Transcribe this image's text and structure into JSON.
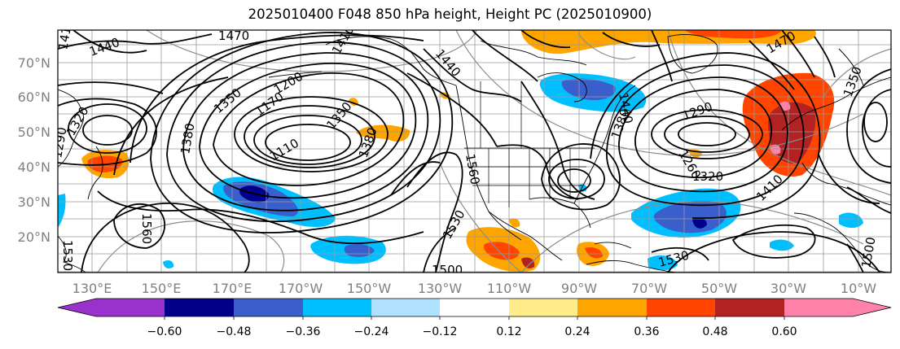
{
  "title": "2025010400 F048 850 hPa height, Height PC (2025010900)",
  "map": {
    "lat_labels": [
      "70°N",
      "60°N",
      "50°N",
      "40°N",
      "30°N",
      "20°N"
    ],
    "lon_labels": [
      "130°E",
      "150°E",
      "170°E",
      "170°W",
      "150°W",
      "130°W",
      "110°W",
      "90°W",
      "70°W",
      "50°W",
      "30°W",
      "10°W"
    ],
    "contour_labels": [
      "1470",
      "1440",
      "1410",
      "1380",
      "1350",
      "1320",
      "1290",
      "1530",
      "1560",
      "1500",
      "1170",
      "1200",
      "1110",
      "1350",
      "1410",
      "1380",
      "1440",
      "1470",
      "1320",
      "1290",
      "1260",
      "1380",
      "1440",
      "1530",
      "1560",
      "1530",
      "1500",
      "1410",
      "1350"
    ]
  },
  "colorbar": {
    "ticks": [
      "−0.60",
      "−0.48",
      "−0.36",
      "−0.24",
      "−0.12",
      "0.12",
      "0.24",
      "0.36",
      "0.48",
      "0.60"
    ],
    "colors": [
      "#9932cc",
      "#00008b",
      "#3a5fcd",
      "#00bfff",
      "#b0e2ff",
      "#ffffff",
      "#ffec8b",
      "#ffa500",
      "#ff4500",
      "#b22222",
      "#ff82ab"
    ]
  },
  "legend_colors": {
    "neg_strong": "#00008b",
    "neg_mid": "#3a5fcd",
    "neg_light": "#00bfff",
    "neg_faint": "#b0e2ff",
    "pos_faint": "#ffec8b",
    "pos_light": "#ffa500",
    "pos_mid": "#ff4500",
    "pos_strong": "#b22222",
    "pos_max": "#ff82ab"
  }
}
